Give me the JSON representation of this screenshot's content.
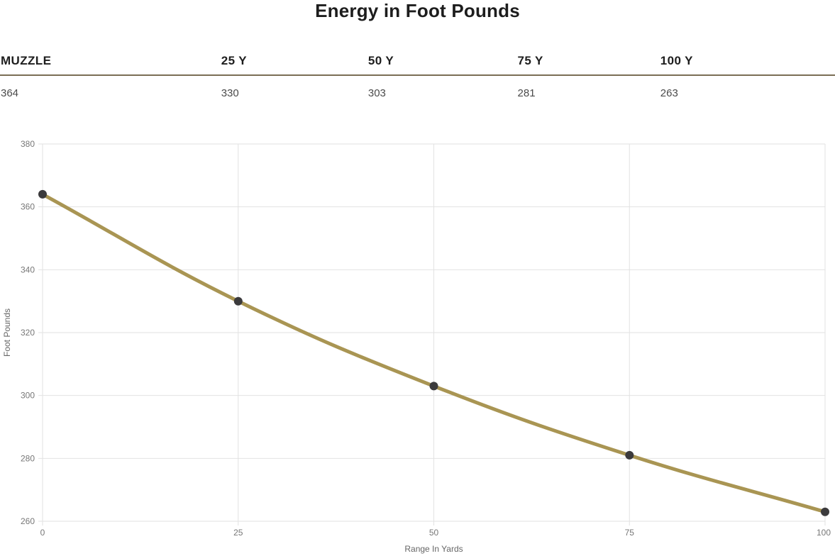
{
  "title": "Energy in Foot Pounds",
  "table": {
    "headers": [
      "MUZZLE",
      "25 Y",
      "50 Y",
      "75 Y",
      "100 Y"
    ],
    "values": [
      "364",
      "330",
      "303",
      "281",
      "263"
    ]
  },
  "chart_data": {
    "type": "line",
    "x": [
      0,
      25,
      50,
      75,
      100
    ],
    "series": [
      {
        "name": "Energy",
        "values": [
          364,
          330,
          303,
          281,
          263
        ]
      }
    ],
    "title": "",
    "xlabel": "Range In Yards",
    "ylabel": "Foot Pounds",
    "xticks": [
      0,
      25,
      50,
      75,
      100
    ],
    "yticks": [
      260,
      280,
      300,
      320,
      340,
      360,
      380
    ],
    "xlim": [
      0,
      100
    ],
    "ylim": [
      260,
      380
    ],
    "grid": true,
    "legend": false,
    "smooth": true,
    "colors": {
      "line": "#a99553",
      "point": "#3b3a3c",
      "grid": "#e2e2e2",
      "tick_text": "#777777",
      "axis_title_text": "#666666"
    }
  }
}
